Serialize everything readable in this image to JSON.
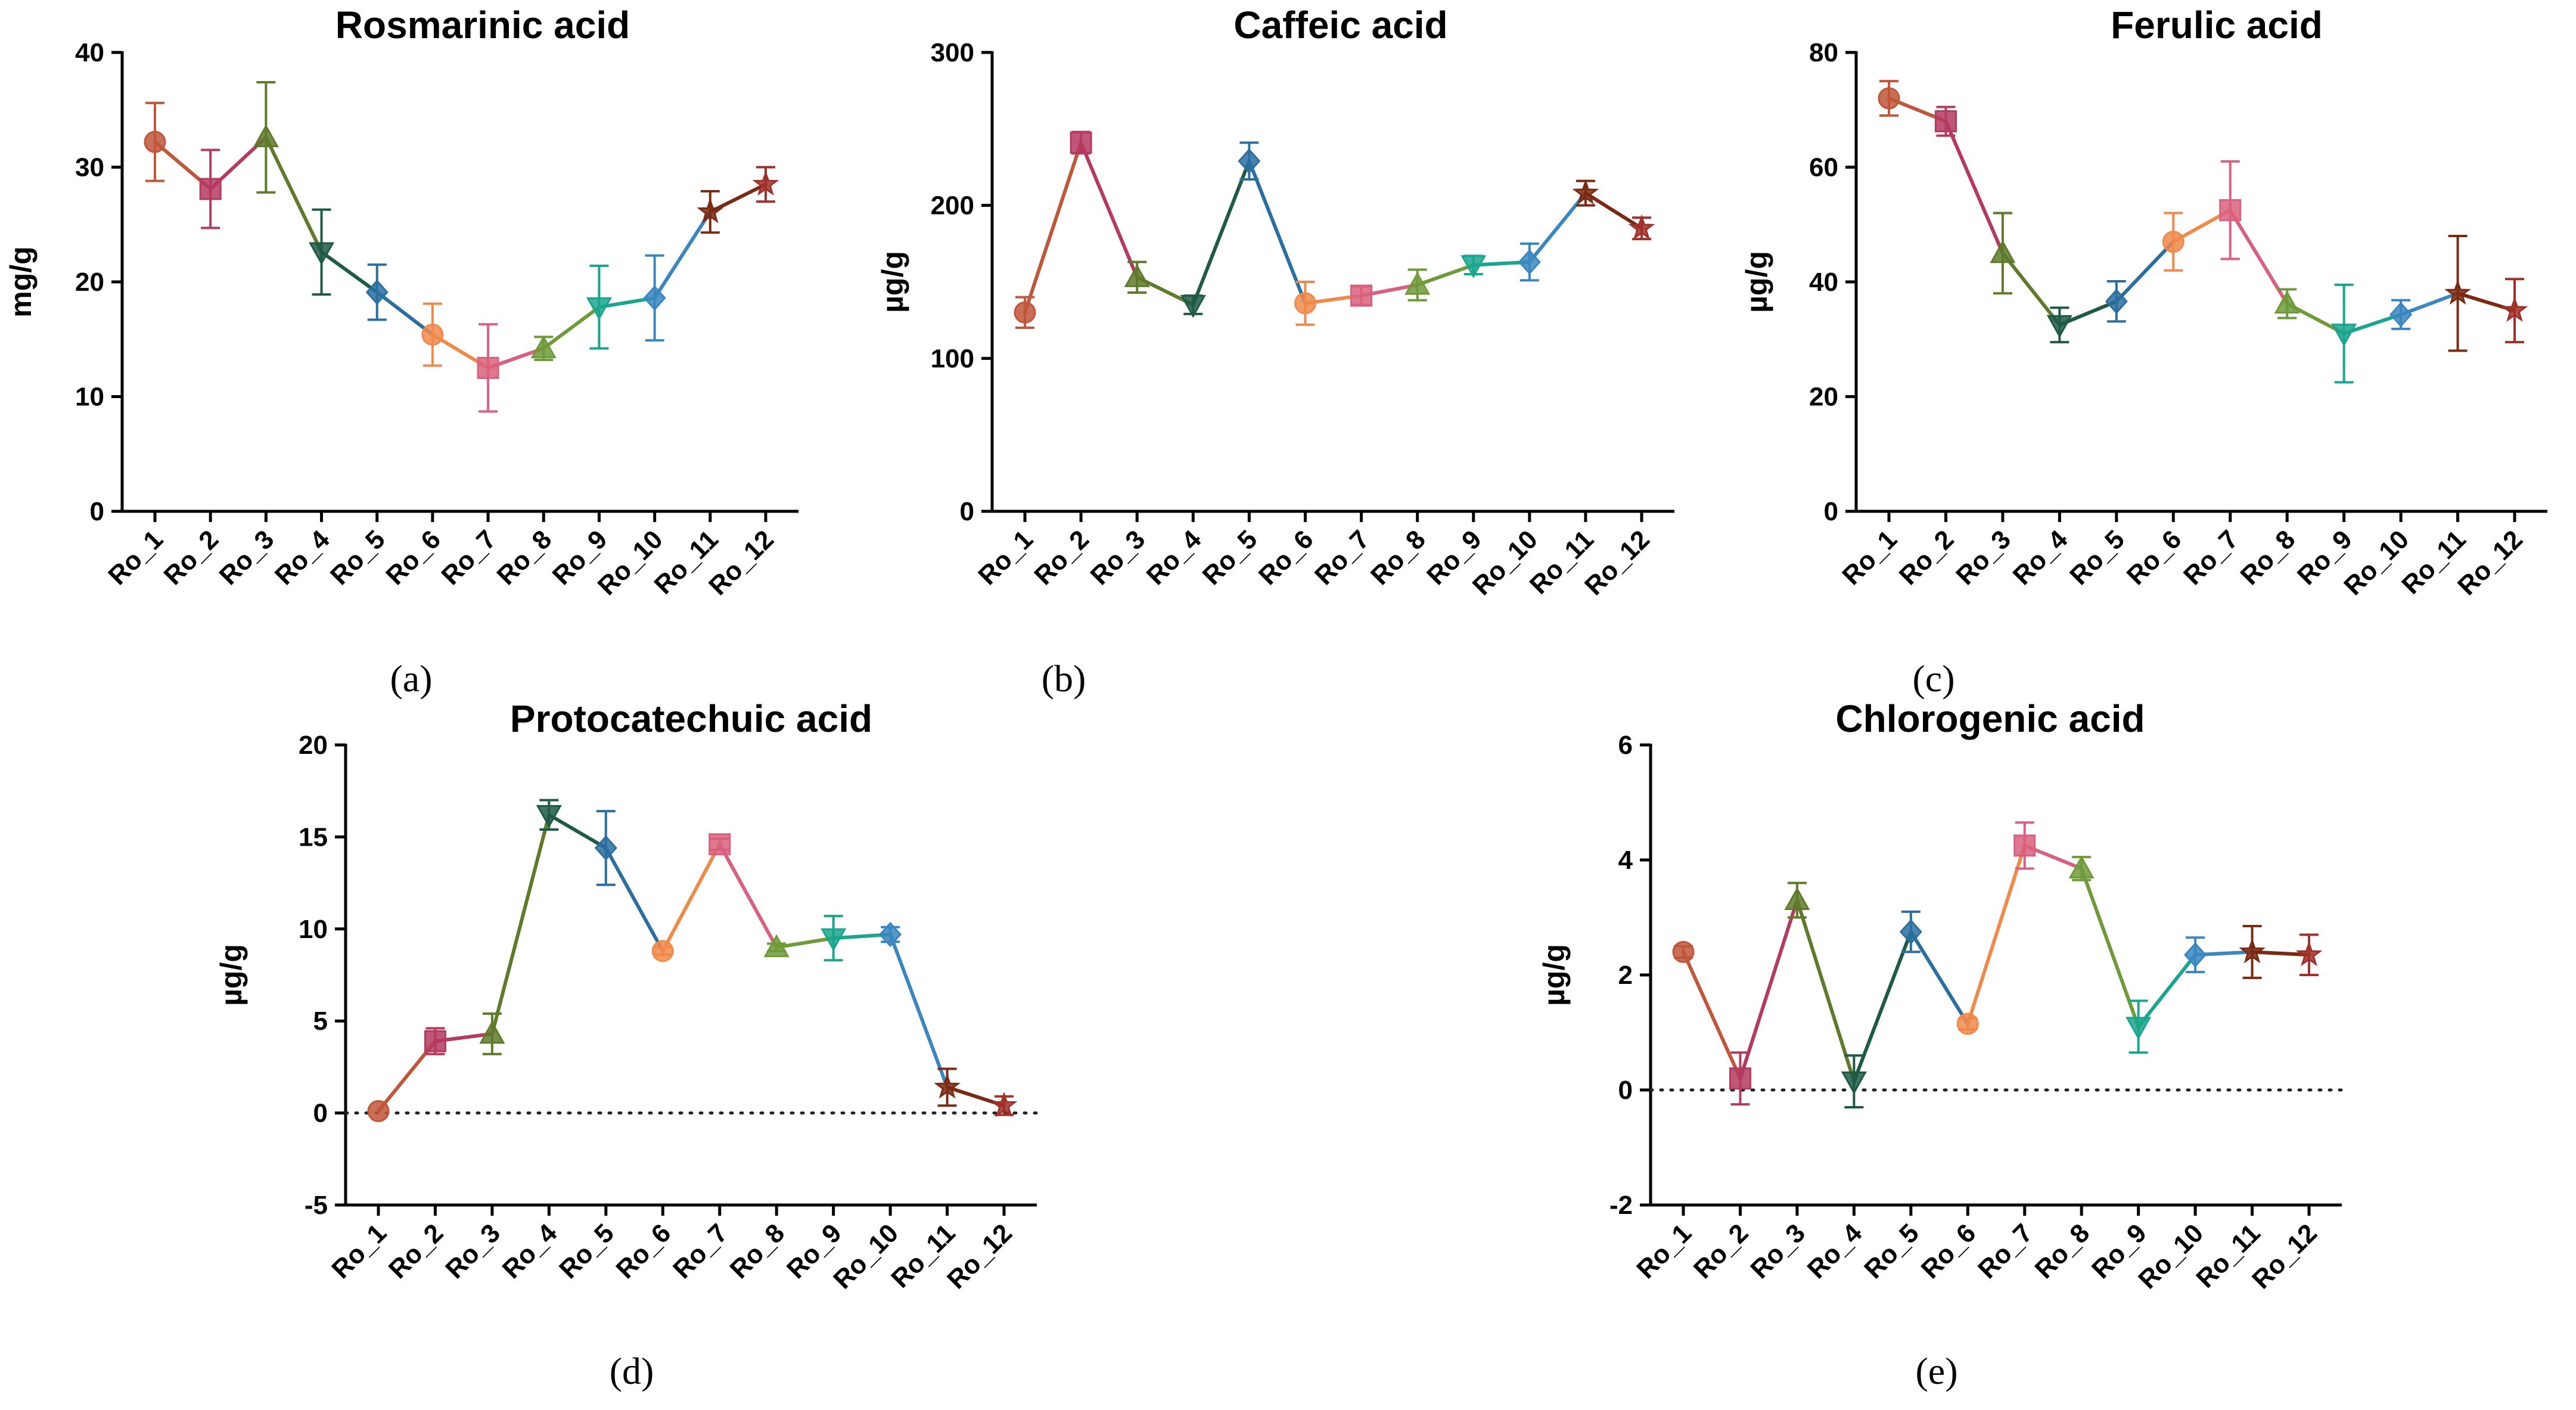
{
  "colors": [
    "#c0563a",
    "#b43a60",
    "#5e7a2a",
    "#1e5a46",
    "#2b6fa0",
    "#f08a4b",
    "#d9607e",
    "#6e9a3a",
    "#1aa58e",
    "#3a86c0",
    "#7a2a12",
    "#a0302a"
  ],
  "markers": [
    "circle",
    "square",
    "triangle-up",
    "triangle-down",
    "diamond",
    "circle",
    "square",
    "triangle-up",
    "triangle-down",
    "diamond",
    "star",
    "star"
  ],
  "chart_data": [
    {
      "type": "line",
      "title": "Rosmarinic acid",
      "caption": "(a)",
      "ylabel": "mg/g",
      "categories": [
        "Ro_1",
        "Ro_2",
        "Ro_3",
        "Ro_4",
        "Ro_5",
        "Ro_6",
        "Ro_7",
        "Ro_8",
        "Ro_9",
        "Ro_10",
        "Ro_11",
        "Ro_12"
      ],
      "values": [
        32.2,
        28.1,
        32.6,
        22.6,
        19.1,
        15.4,
        12.5,
        14.2,
        17.8,
        18.6,
        26.1,
        28.5
      ],
      "errors": [
        3.4,
        3.4,
        4.8,
        3.7,
        2.4,
        2.7,
        3.8,
        1.0,
        3.6,
        3.7,
        1.8,
        1.5
      ],
      "ylim": [
        0,
        40
      ],
      "yticks": [
        0,
        10,
        20,
        30,
        40
      ],
      "zero_line": false
    },
    {
      "type": "line",
      "title": "Caffeic acid",
      "caption": "(b)",
      "ylabel": "µg/g",
      "categories": [
        "Ro_1",
        "Ro_2",
        "Ro_3",
        "Ro_4",
        "Ro_5",
        "Ro_6",
        "Ro_7",
        "Ro_8",
        "Ro_9",
        "Ro_10",
        "Ro_11",
        "Ro_12"
      ],
      "values": [
        130,
        241,
        153,
        135,
        229,
        136,
        141,
        148,
        161,
        163,
        208,
        185
      ],
      "errors": [
        10,
        7,
        10,
        6,
        12,
        14,
        6,
        10,
        6,
        12,
        8,
        7
      ],
      "ylim": [
        0,
        300
      ],
      "yticks": [
        0,
        100,
        200,
        300
      ],
      "zero_line": false
    },
    {
      "type": "line",
      "title": "Ferulic acid",
      "caption": "(c)",
      "ylabel": "µg/g",
      "categories": [
        "Ro_1",
        "Ro_2",
        "Ro_3",
        "Ro_4",
        "Ro_5",
        "Ro_6",
        "Ro_7",
        "Ro_8",
        "Ro_9",
        "Ro_10",
        "Ro_11",
        "Ro_12"
      ],
      "values": [
        72,
        68,
        45,
        32.5,
        36.6,
        47,
        52.5,
        36.2,
        31,
        34.3,
        38,
        35
      ],
      "errors": [
        3,
        2.5,
        7,
        3,
        3.5,
        5,
        8.5,
        2.5,
        8.5,
        2.5,
        10,
        5.5
      ],
      "ylim": [
        0,
        80
      ],
      "yticks": [
        0,
        20,
        40,
        60,
        80
      ],
      "zero_line": false
    },
    {
      "type": "line",
      "title": "Protocatechuic acid",
      "caption": "(d)",
      "ylabel": "µg/g",
      "categories": [
        "Ro_1",
        "Ro_2",
        "Ro_3",
        "Ro_4",
        "Ro_5",
        "Ro_6",
        "Ro_7",
        "Ro_8",
        "Ro_9",
        "Ro_10",
        "Ro_11",
        "Ro_12"
      ],
      "values": [
        0.1,
        3.9,
        4.3,
        16.2,
        14.4,
        8.8,
        14.6,
        9.0,
        9.5,
        9.7,
        1.4,
        0.4
      ],
      "errors": [
        0.0,
        0.7,
        1.1,
        0.8,
        2.0,
        0.2,
        0.3,
        0.2,
        1.2,
        0.4,
        1.0,
        0.5
      ],
      "ylim": [
        -5,
        20
      ],
      "yticks": [
        -5,
        0,
        5,
        10,
        15,
        20
      ],
      "zero_line": true
    },
    {
      "type": "line",
      "title": "Chlorogenic acid",
      "caption": "(e)",
      "ylabel": "µg/g",
      "categories": [
        "Ro_1",
        "Ro_2",
        "Ro_3",
        "Ro_4",
        "Ro_5",
        "Ro_6",
        "Ro_7",
        "Ro_8",
        "Ro_9",
        "Ro_10",
        "Ro_11",
        "Ro_12"
      ],
      "values": [
        2.4,
        0.2,
        3.3,
        0.15,
        2.75,
        1.15,
        4.25,
        3.85,
        1.1,
        2.35,
        2.4,
        2.35
      ],
      "errors": [
        0.1,
        0.45,
        0.3,
        0.45,
        0.35,
        0.1,
        0.4,
        0.2,
        0.45,
        0.3,
        0.45,
        0.35
      ],
      "ylim": [
        -2,
        6
      ],
      "yticks": [
        -2,
        0,
        2,
        4,
        6
      ],
      "zero_line": true
    }
  ]
}
